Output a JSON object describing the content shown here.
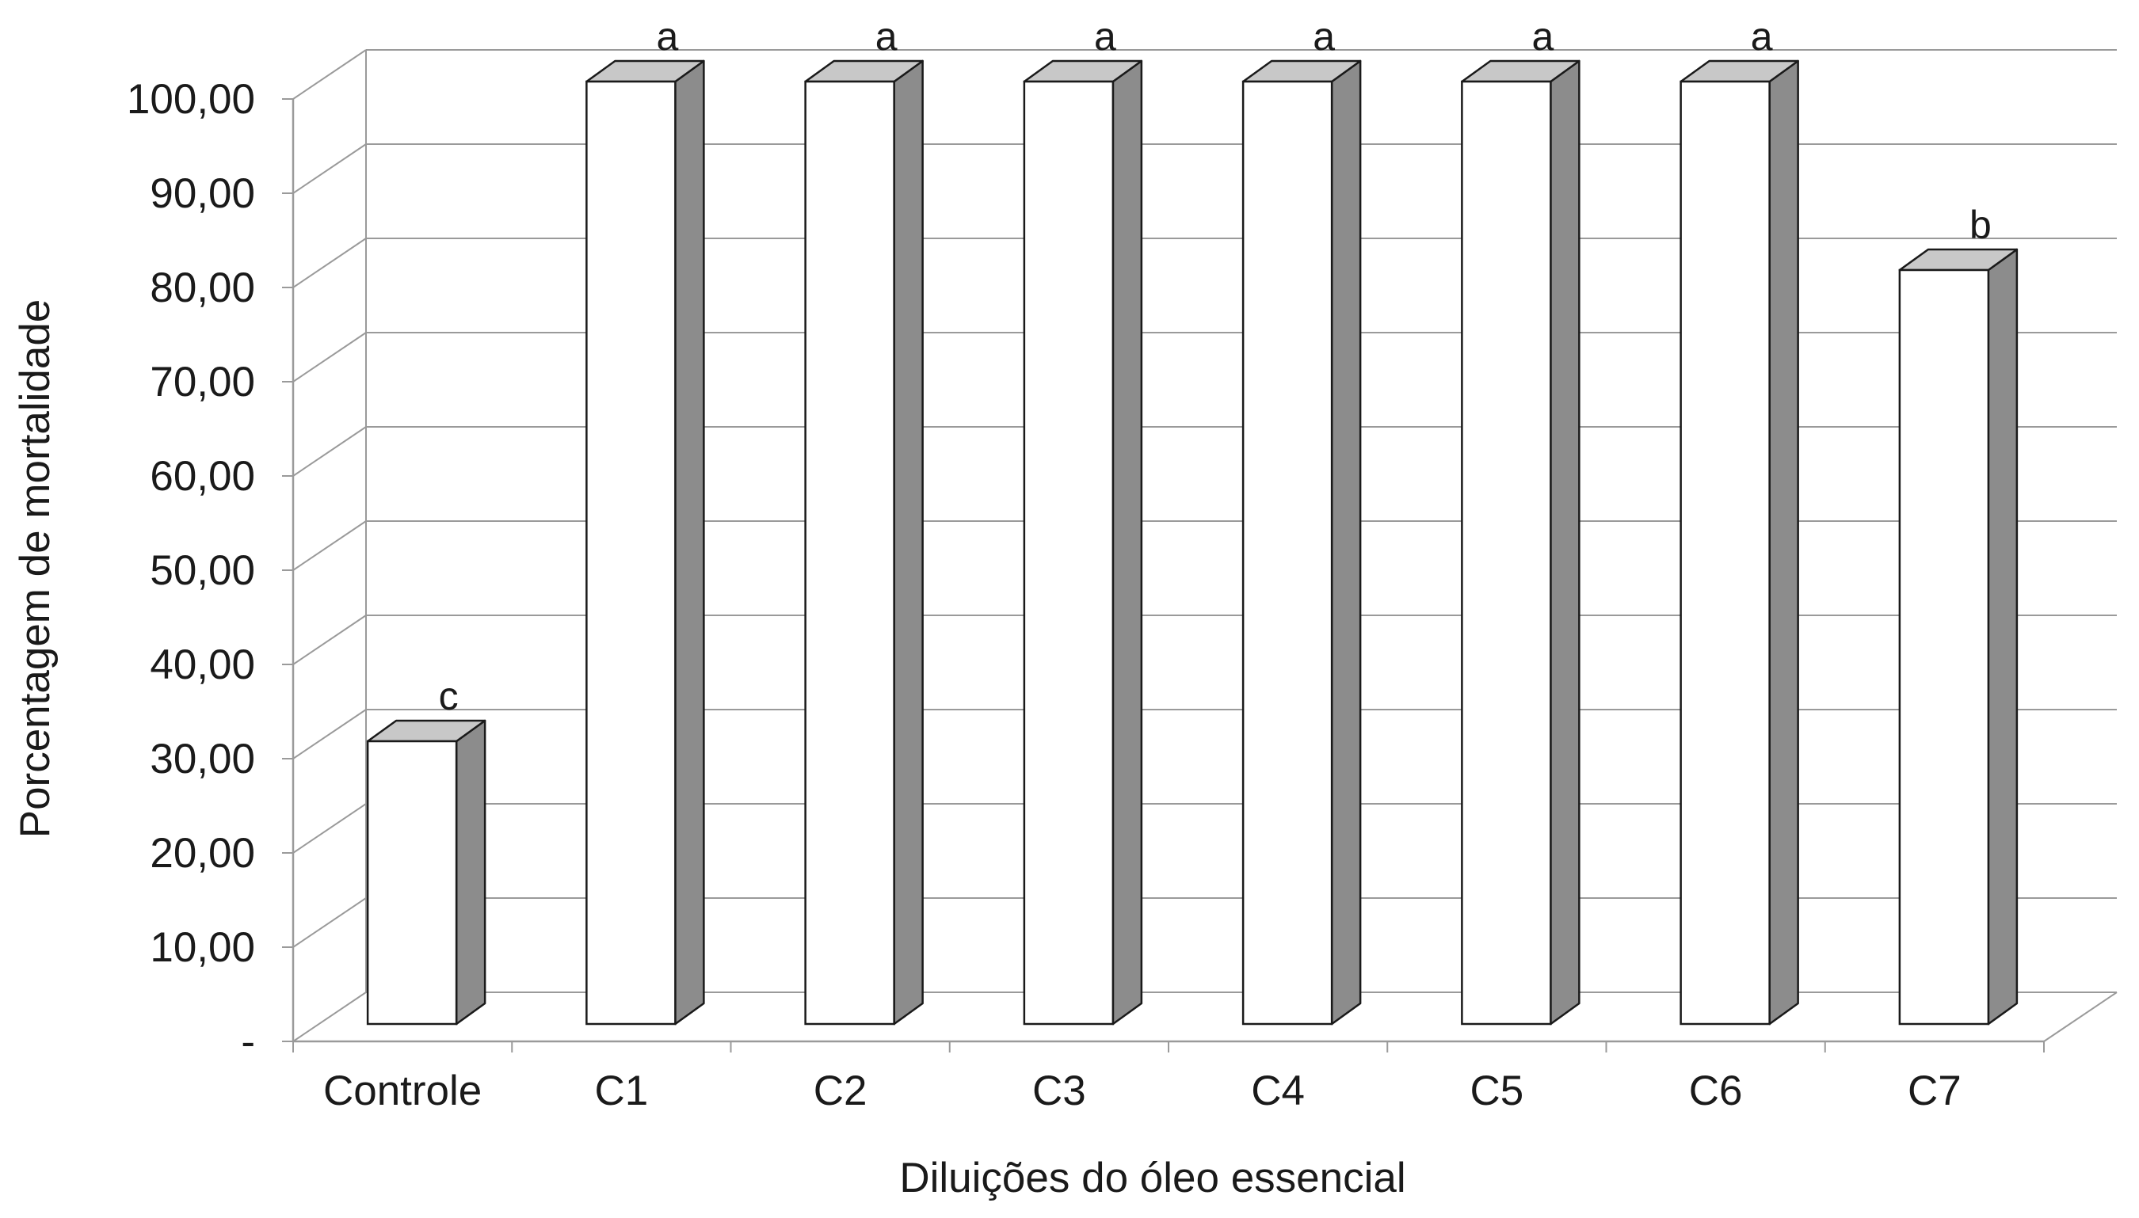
{
  "chart_data": {
    "type": "bar",
    "title": "",
    "xlabel": "Diluições do óleo essencial",
    "ylabel": "Porcentagem de mortalidade",
    "categories": [
      "Controle",
      "C1",
      "C2",
      "C3",
      "C4",
      "C5",
      "C6",
      "C7"
    ],
    "values": [
      30,
      100,
      100,
      100,
      100,
      100,
      100,
      80
    ],
    "significance_letters": [
      "c",
      "a",
      "a",
      "a",
      "a",
      "a",
      "a",
      "b"
    ],
    "ylim": [
      0,
      100
    ],
    "y_ticks": [
      0,
      10,
      20,
      30,
      40,
      50,
      60,
      70,
      80,
      90,
      100
    ],
    "y_tick_labels": [
      "-",
      "10,00",
      "20,00",
      "30,00",
      "40,00",
      "50,00",
      "60,00",
      "70,00",
      "80,00",
      "90,00",
      "100,00"
    ],
    "grid": true,
    "style": "3d",
    "colors": {
      "bar_front": "#ffffff",
      "bar_side": "#8c8c8c",
      "bar_top": "#c8c8c8",
      "outline": "#1a1a1a",
      "grid": "#9a9a9a"
    }
  }
}
